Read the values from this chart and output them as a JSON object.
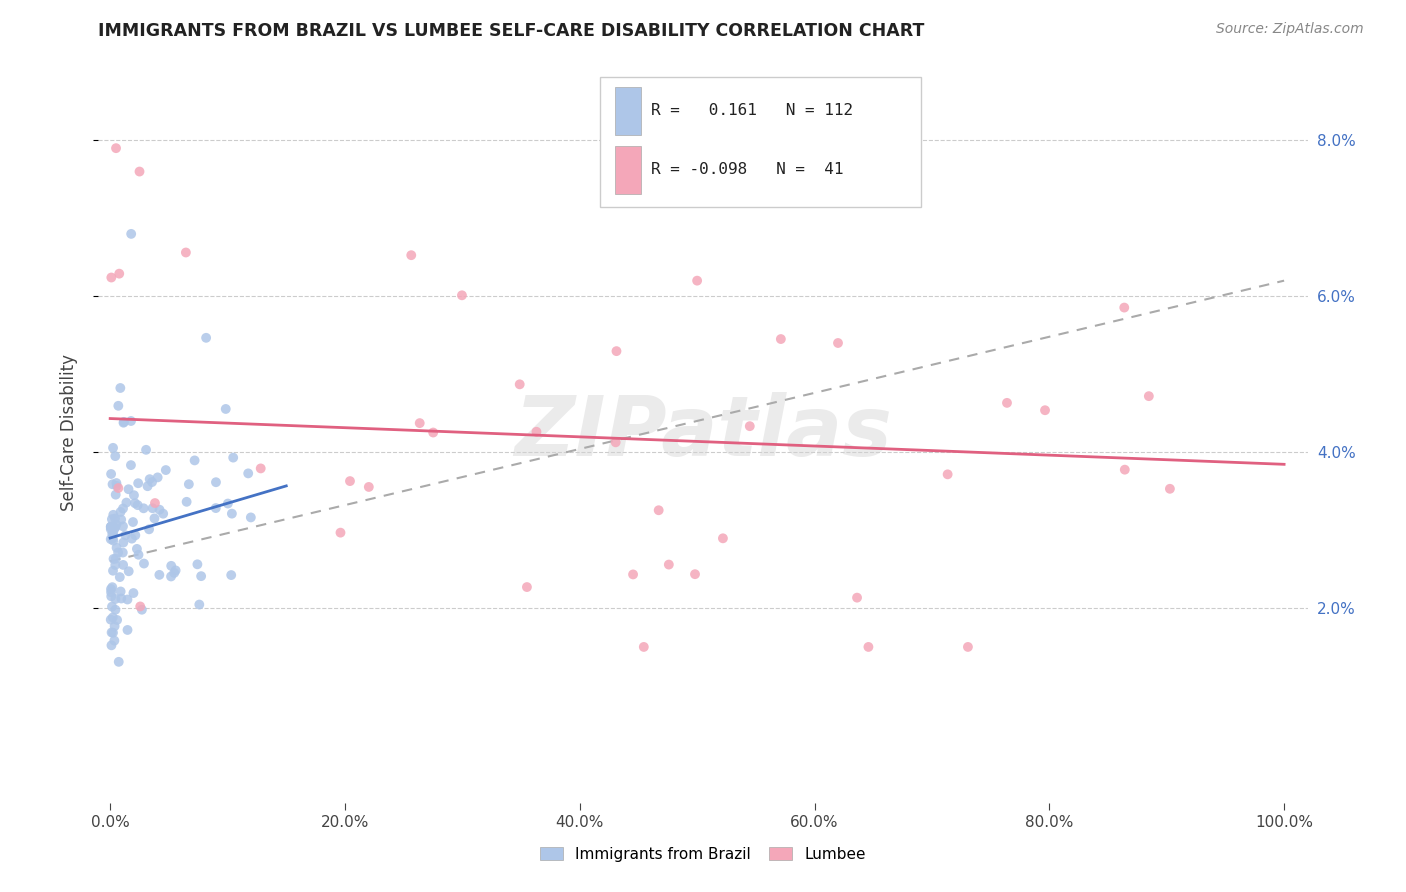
{
  "title": "IMMIGRANTS FROM BRAZIL VS LUMBEE SELF-CARE DISABILITY CORRELATION CHART",
  "source": "Source: ZipAtlas.com",
  "ylabel": "Self-Care Disability",
  "yticks": [
    "2.0%",
    "4.0%",
    "6.0%",
    "8.0%"
  ],
  "ytick_vals": [
    0.02,
    0.04,
    0.06,
    0.08
  ],
  "xtick_vals": [
    0.0,
    0.2,
    0.4,
    0.6,
    0.8,
    1.0
  ],
  "xtick_labels": [
    "0.0%",
    "20.0%",
    "40.0%",
    "60.0%",
    "80.0%",
    "100.0%"
  ],
  "xlim": [
    -0.01,
    1.02
  ],
  "ylim": [
    -0.005,
    0.09
  ],
  "legend_brazil_R": " 0.161",
  "legend_brazil_N": "112",
  "legend_lumbee_R": "-0.098",
  "legend_lumbee_N": " 41",
  "color_brazil": "#aec6e8",
  "color_lumbee": "#f4a7b9",
  "trendline_brazil_color": "#4472c4",
  "trendline_lumbee_color": "#e06080",
  "trendline_dashed_color": "#aaaaaa",
  "watermark": "ZIPatlas",
  "brazil_seed": 42,
  "lumbee_seed": 7
}
